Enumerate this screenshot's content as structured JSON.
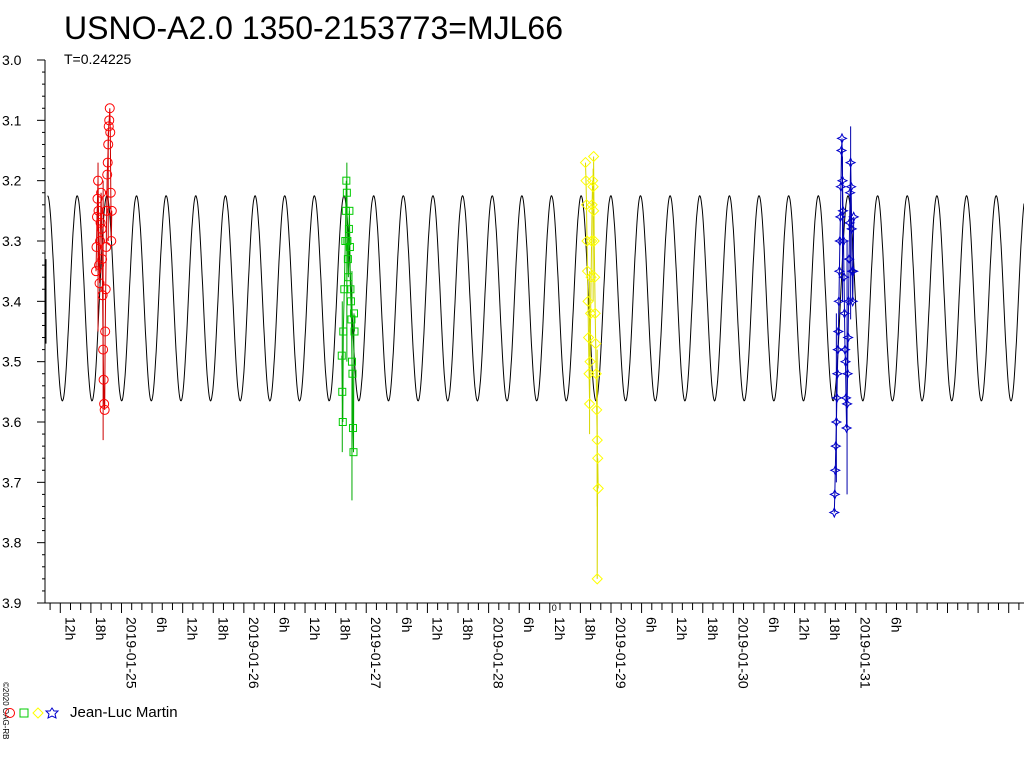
{
  "title": "USNO-A2.0 1350-2153773=MJL66",
  "period_label": "T=0.24225",
  "copyright": "©2020 OAG-RB",
  "legend": {
    "observer": "Jean-Luc Martin",
    "symbols": [
      "circle",
      "square",
      "diamond",
      "star"
    ],
    "colors": [
      "#ff0000",
      "#00cc00",
      "#ffff00",
      "#0000cc"
    ]
  },
  "chart_data": {
    "type": "line",
    "title": "USNO-A2.0 1350-2153773=MJL66",
    "xlabel": "",
    "ylabel": "",
    "ylim": [
      3.0,
      3.9
    ],
    "y_inverted": true,
    "y_ticks": [
      "3.0",
      "3.1",
      "3.2",
      "3.3",
      "3.4",
      "3.5",
      "3.6",
      "3.7",
      "3.8",
      "3.9"
    ],
    "x_start_hours": -15,
    "x_end_hours": 177,
    "x_tick_labels": [
      {
        "t": -12,
        "label": "12h"
      },
      {
        "t": -6,
        "label": "18h"
      },
      {
        "t": 0,
        "label": "2019-01-25"
      },
      {
        "t": 6,
        "label": "6h"
      },
      {
        "t": 12,
        "label": "12h"
      },
      {
        "t": 18,
        "label": "18h"
      },
      {
        "t": 24,
        "label": "2019-01-26"
      },
      {
        "t": 30,
        "label": "6h"
      },
      {
        "t": 36,
        "label": "12h"
      },
      {
        "t": 42,
        "label": "18h"
      },
      {
        "t": 48,
        "label": "2019-01-27"
      },
      {
        "t": 54,
        "label": "6h"
      },
      {
        "t": 60,
        "label": "12h"
      },
      {
        "t": 66,
        "label": "18h"
      },
      {
        "t": 72,
        "label": "2019-01-28"
      },
      {
        "t": 78,
        "label": "6h"
      },
      {
        "t": 84,
        "label": "12h"
      },
      {
        "t": 90,
        "label": "18h"
      },
      {
        "t": 96,
        "label": "2019-01-29"
      },
      {
        "t": 102,
        "label": "6h"
      },
      {
        "t": 108,
        "label": "12h"
      },
      {
        "t": 114,
        "label": "18h"
      },
      {
        "t": 120,
        "label": "2019-01-30"
      },
      {
        "t": 126,
        "label": "6h"
      },
      {
        "t": 132,
        "label": "12h"
      },
      {
        "t": 138,
        "label": "18h"
      },
      {
        "t": 144,
        "label": "2019-01-31"
      },
      {
        "t": 150,
        "label": "6h"
      }
    ],
    "model": {
      "period_days": 0.24225,
      "min_mag": 3.225,
      "max_mag": 3.565
    },
    "series": [
      {
        "symbol": "circle",
        "color": "#ff0000",
        "line_color": "#cc0000",
        "points": [
          [
            -5.0,
            3.35
          ],
          [
            -4.9,
            3.31
          ],
          [
            -4.8,
            3.26
          ],
          [
            -4.7,
            3.23
          ],
          [
            -4.6,
            3.2
          ],
          [
            -4.5,
            3.25
          ],
          [
            -4.4,
            3.34
          ],
          [
            -4.3,
            3.37
          ],
          [
            -4.2,
            3.3
          ],
          [
            -4.1,
            3.27
          ],
          [
            -4.0,
            3.22
          ],
          [
            -3.9,
            3.28
          ],
          [
            -3.8,
            3.33
          ],
          [
            -3.7,
            3.39
          ],
          [
            -3.6,
            3.48
          ],
          [
            -3.5,
            3.53
          ],
          [
            -3.4,
            3.57
          ],
          [
            -3.3,
            3.58
          ],
          [
            -3.2,
            3.45
          ],
          [
            -3.1,
            3.38
          ],
          [
            -3.0,
            3.31
          ],
          [
            -2.9,
            3.25
          ],
          [
            -2.8,
            3.19
          ],
          [
            -2.7,
            3.17
          ],
          [
            -2.6,
            3.14
          ],
          [
            -2.5,
            3.11
          ],
          [
            -2.4,
            3.1
          ],
          [
            -2.3,
            3.08
          ],
          [
            -2.2,
            3.12
          ],
          [
            -2.1,
            3.22
          ],
          [
            -2.0,
            3.3
          ],
          [
            -1.9,
            3.25
          ]
        ],
        "errors": [
          [
            -4.6,
            3.17,
            3.45
          ],
          [
            -3.6,
            3.2,
            3.63
          ],
          [
            -2.6,
            3.12,
            3.3
          ]
        ]
      },
      {
        "symbol": "square",
        "color": "#00cc00",
        "line_color": "#00aa00",
        "points": [
          [
            43.2,
            3.49
          ],
          [
            43.3,
            3.55
          ],
          [
            43.4,
            3.6
          ],
          [
            43.5,
            3.45
          ],
          [
            43.7,
            3.38
          ],
          [
            43.9,
            3.3
          ],
          [
            44.0,
            3.25
          ],
          [
            44.1,
            3.2
          ],
          [
            44.2,
            3.22
          ],
          [
            44.3,
            3.3
          ],
          [
            44.4,
            3.33
          ],
          [
            44.5,
            3.36
          ],
          [
            44.6,
            3.28
          ],
          [
            44.7,
            3.25
          ],
          [
            44.8,
            3.31
          ],
          [
            44.9,
            3.38
          ],
          [
            45.0,
            3.4
          ],
          [
            45.1,
            3.43
          ],
          [
            45.2,
            3.5
          ],
          [
            45.3,
            3.52
          ],
          [
            45.4,
            3.61
          ],
          [
            45.5,
            3.65
          ],
          [
            45.6,
            3.42
          ],
          [
            45.7,
            3.45
          ]
        ],
        "errors": [
          [
            43.3,
            3.4,
            3.65
          ],
          [
            44.2,
            3.17,
            3.5
          ],
          [
            45.2,
            3.35,
            3.73
          ]
        ]
      },
      {
        "symbol": "diamond",
        "color": "#ffff00",
        "line_color": "#d8d800",
        "points": [
          [
            91.0,
            3.17
          ],
          [
            91.1,
            3.2
          ],
          [
            91.2,
            3.24
          ],
          [
            91.3,
            3.3
          ],
          [
            91.4,
            3.35
          ],
          [
            91.5,
            3.4
          ],
          [
            91.6,
            3.46
          ],
          [
            91.7,
            3.52
          ],
          [
            91.8,
            3.57
          ],
          [
            91.9,
            3.5
          ],
          [
            92.0,
            3.42
          ],
          [
            92.1,
            3.36
          ],
          [
            92.2,
            3.3
          ],
          [
            92.3,
            3.24
          ],
          [
            92.4,
            3.2
          ],
          [
            92.5,
            3.21
          ],
          [
            92.6,
            3.25
          ],
          [
            92.7,
            3.3
          ],
          [
            92.8,
            3.36
          ],
          [
            92.9,
            3.42
          ],
          [
            93.0,
            3.47
          ],
          [
            93.1,
            3.52
          ],
          [
            93.2,
            3.58
          ],
          [
            93.3,
            3.63
          ],
          [
            93.4,
            3.66
          ],
          [
            93.5,
            3.71
          ],
          [
            93.3,
            3.86
          ],
          [
            92.6,
            3.16
          ]
        ],
        "errors": [
          [
            91.8,
            3.35,
            3.62
          ],
          [
            92.5,
            3.18,
            3.4
          ],
          [
            93.3,
            3.48,
            3.74
          ]
        ]
      },
      {
        "symbol": "star",
        "color": "#0000cc",
        "line_color": "#0000aa",
        "points": [
          [
            139.8,
            3.75
          ],
          [
            139.9,
            3.72
          ],
          [
            140.0,
            3.68
          ],
          [
            140.1,
            3.64
          ],
          [
            140.2,
            3.6
          ],
          [
            140.3,
            3.56
          ],
          [
            140.4,
            3.52
          ],
          [
            140.5,
            3.48
          ],
          [
            140.6,
            3.45
          ],
          [
            140.7,
            3.4
          ],
          [
            140.8,
            3.35
          ],
          [
            140.9,
            3.3
          ],
          [
            141.0,
            3.26
          ],
          [
            141.1,
            3.21
          ],
          [
            141.2,
            3.15
          ],
          [
            141.3,
            3.13
          ],
          [
            141.4,
            3.2
          ],
          [
            141.5,
            3.25
          ],
          [
            141.6,
            3.3
          ],
          [
            141.7,
            3.36
          ],
          [
            141.8,
            3.42
          ],
          [
            141.9,
            3.48
          ],
          [
            142.0,
            3.5
          ],
          [
            142.1,
            3.56
          ],
          [
            142.2,
            3.61
          ],
          [
            142.3,
            3.57
          ],
          [
            142.4,
            3.52
          ],
          [
            142.5,
            3.46
          ],
          [
            142.6,
            3.4
          ],
          [
            142.7,
            3.33
          ],
          [
            142.8,
            3.27
          ],
          [
            142.9,
            3.22
          ],
          [
            143.0,
            3.17
          ],
          [
            143.1,
            3.21
          ],
          [
            143.2,
            3.28
          ],
          [
            143.3,
            3.35
          ],
          [
            143.4,
            3.4
          ],
          [
            143.5,
            3.35
          ],
          [
            143.6,
            3.26
          ]
        ],
        "errors": [
          [
            140.2,
            3.42,
            3.7
          ],
          [
            141.4,
            3.16,
            3.4
          ],
          [
            142.3,
            3.3,
            3.72
          ],
          [
            143.0,
            3.11,
            3.43
          ]
        ]
      }
    ]
  }
}
